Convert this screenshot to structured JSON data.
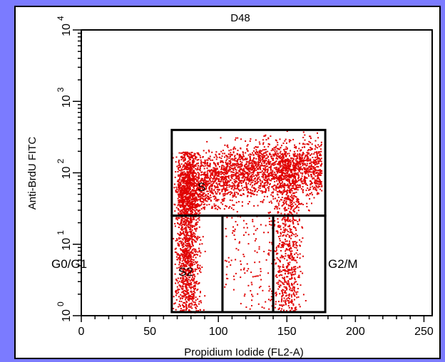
{
  "chart_data": {
    "type": "scatter",
    "title": "D48",
    "xlabel": "Propidium Iodide (FL2-A)",
    "ylabel": "Anti-BrdU FITC",
    "xlim": [
      0,
      256
    ],
    "ylim_log10": [
      0,
      4
    ],
    "x_scale": "linear",
    "y_scale": "log",
    "x_ticks": [
      0,
      50,
      100,
      150,
      200,
      250
    ],
    "y_ticks": [
      {
        "base": "10",
        "exp": "0"
      },
      {
        "base": "10",
        "exp": "1"
      },
      {
        "base": "10",
        "exp": "2"
      },
      {
        "base": "10",
        "exp": "3"
      },
      {
        "base": "10",
        "exp": "4"
      }
    ],
    "point_color": "#e00000",
    "gates": [
      {
        "label": "S",
        "x": [
          66,
          178
        ],
        "y_log10": [
          1.4,
          2.6
        ]
      },
      {
        "label": "G0/G1",
        "x": [
          66,
          103
        ],
        "y_log10": [
          0.05,
          1.4
        ]
      },
      {
        "label": "S2",
        "x": [
          103,
          140
        ],
        "y_log10": [
          0.05,
          1.4
        ]
      },
      {
        "label": "G2/M",
        "x": [
          140,
          178
        ],
        "y_log10": [
          0.05,
          1.4
        ]
      }
    ],
    "populations": [
      {
        "name": "G0/G1 column",
        "x_center": 77,
        "x_spread": 4,
        "y_log10_range": [
          0.05,
          2.3
        ],
        "count": 1500
      },
      {
        "name": "S arc",
        "x_range": [
          70,
          175
        ],
        "y_log10_center": 2.05,
        "y_log10_spread": 0.2,
        "count": 2600
      },
      {
        "name": "G2/M column",
        "x_center": 150,
        "x_spread": 5,
        "y_log10_range": [
          0.05,
          2.2
        ],
        "count": 800
      },
      {
        "name": "S2 scatter",
        "x_range": [
          103,
          140
        ],
        "y_log10_range": [
          0.1,
          1.4
        ],
        "count": 130
      }
    ]
  }
}
